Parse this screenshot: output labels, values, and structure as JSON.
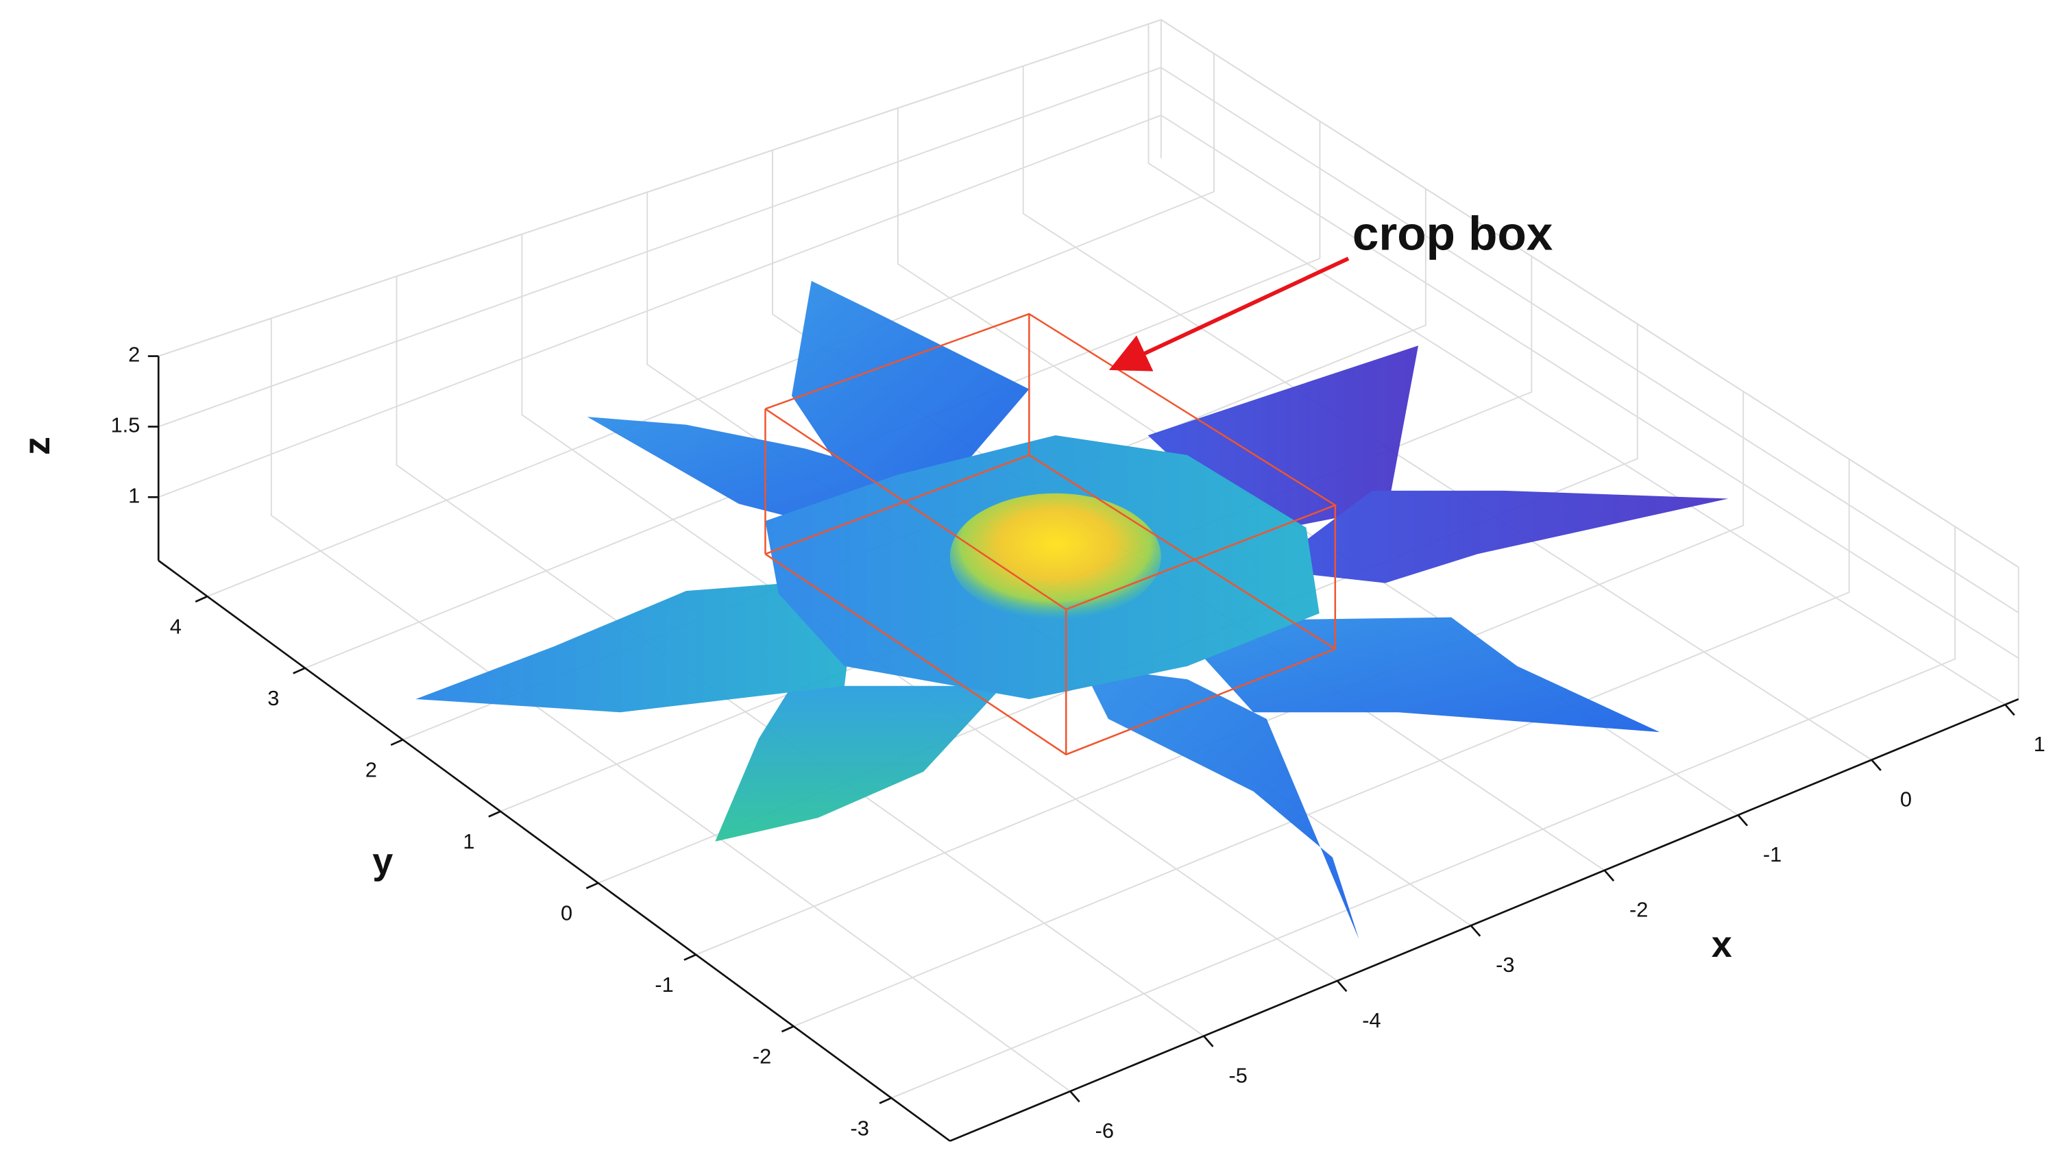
{
  "chart_data": {
    "type": "scatter3d",
    "annotation": "crop box",
    "xlabel": "x",
    "ylabel": "y",
    "zlabel": "z",
    "xlim": [
      -6.9,
      1.1
    ],
    "ylim": [
      -3.6,
      4.5
    ],
    "zlim": [
      0.55,
      2
    ],
    "xticks": [
      -6,
      -5,
      -4,
      -3,
      -2,
      -1,
      0,
      1
    ],
    "yticks": [
      -3,
      -2,
      -1,
      0,
      1,
      2,
      3,
      4
    ],
    "zticks": [
      1,
      1.5,
      2
    ],
    "grid": true
  }
}
